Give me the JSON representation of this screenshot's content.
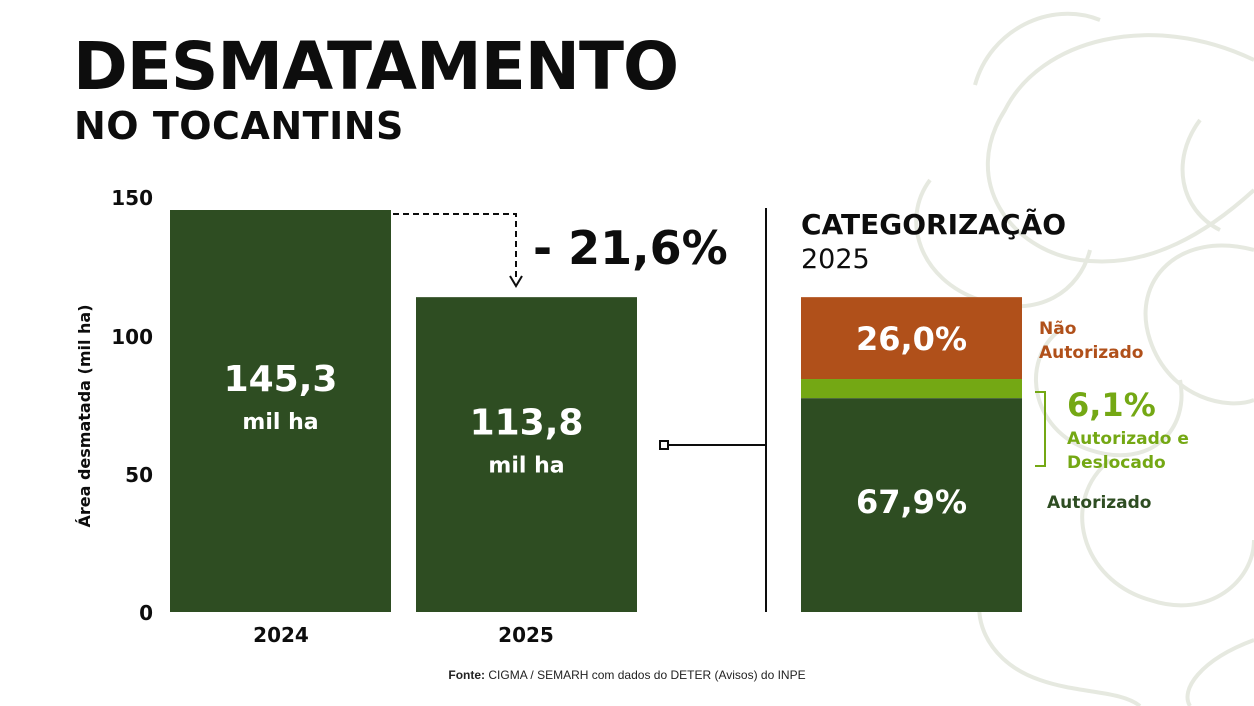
{
  "title": "DESMATAMENTO",
  "subtitle": "NO TOCANTINS",
  "colors": {
    "bar": "#2e4d22",
    "nao_autorizado": "#b0501a",
    "autorizado_deslocado": "#74a814",
    "autorizado": "#2e4d22",
    "deco_line": "#e6e9e0"
  },
  "change_label": "- 21,6%",
  "source": {
    "label": "Fonte:",
    "text": "CIGMA / SEMARH com dados do DETER (Avisos) do INPE"
  },
  "chart_data": [
    {
      "type": "bar",
      "categories": [
        "2024",
        "2025"
      ],
      "values": [
        145.3,
        113.8
      ],
      "value_labels": [
        "145,3",
        "113,8"
      ],
      "unit_label": "mil ha",
      "ylabel": "Área desmatada (mil ha)",
      "yticks": [
        "0",
        "50",
        "100",
        "150"
      ],
      "ylim": [
        0,
        150
      ],
      "grid": false
    },
    {
      "type": "bar",
      "title": "CATEGORIZAÇÃO",
      "subtitle": "2025",
      "stacked": true,
      "total": 113.8,
      "series": [
        {
          "name": "Autorizado",
          "value": 67.9,
          "label": "67,9%"
        },
        {
          "name": "Autorizado e Deslocado",
          "value": 6.1,
          "label": "6,1%"
        },
        {
          "name": "Não Autorizado",
          "value": 26.0,
          "label": "26,0%"
        }
      ],
      "legend_labels": {
        "nao_autorizado": [
          "Não",
          "Autorizado"
        ],
        "autorizado_deslocado": [
          "Autorizado e",
          "Deslocado"
        ],
        "autorizado": "Autorizado"
      }
    }
  ]
}
